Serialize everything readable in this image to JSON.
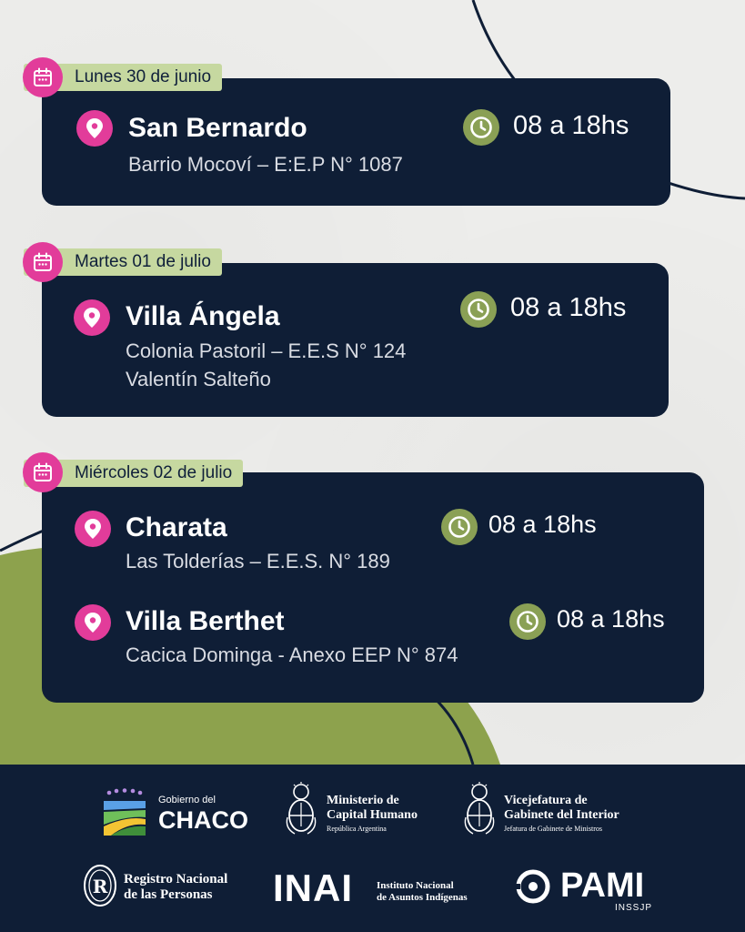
{
  "days": [
    {
      "date": "Lunes 30 de junio",
      "entries": [
        {
          "place": "San Bernardo",
          "address": [
            "Barrio Mocoví – E:E.P N° 1087"
          ],
          "time": "08 a 18hs"
        }
      ]
    },
    {
      "date": "Martes 01 de julio",
      "entries": [
        {
          "place": "Villa Ángela",
          "address": [
            "Colonia Pastoril – E.E.S N° 124",
            "Valentín Salteño"
          ],
          "time": "08 a 18hs"
        }
      ]
    },
    {
      "date": "Miércoles 02 de julio",
      "entries": [
        {
          "place": "Charata",
          "address": [
            "Las Tolderías – E.E.S. N° 189"
          ],
          "time": "08 a 18hs"
        },
        {
          "place": "Villa Berthet",
          "address": [
            "Cacica Dominga - Anexo EEP N° 874"
          ],
          "time": "08 a 18hs"
        }
      ]
    }
  ],
  "footer": {
    "chaco": {
      "small": "Gobierno del",
      "big": "CHACO"
    },
    "ministerio": {
      "line1": "Ministerio de",
      "line2": "Capital Humano",
      "line3": "República Argentina"
    },
    "vicejefatura": {
      "line1": "Vicejefatura de",
      "line2": "Gabinete del Interior",
      "line3": "Jefatura de Gabinete de Ministros"
    },
    "renaper": {
      "line1": "Registro Nacional",
      "line2": "de las Personas"
    },
    "inai": {
      "big": "INAI",
      "line1": "Instituto Nacional",
      "line2": "de Asuntos Indígenas"
    },
    "pami": {
      "big": "PAMI",
      "small": "INSSJP"
    }
  },
  "colors": {
    "navy": "#0f1e36",
    "pink": "#e23c9a",
    "olive": "#8aa055",
    "tag_green": "#c6d8a0",
    "background": "#ededeb"
  },
  "icons": [
    "calendar-icon",
    "location-pin-icon",
    "clock-icon"
  ]
}
